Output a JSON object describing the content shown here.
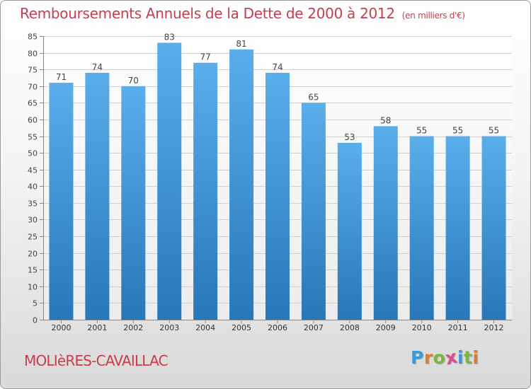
{
  "chart_data": {
    "type": "bar",
    "title": "Remboursements Annuels de la Dette de 2000 à 2012",
    "unit_label": "(en milliers d'€)",
    "categories": [
      "2000",
      "2001",
      "2002",
      "2003",
      "2004",
      "2005",
      "2006",
      "2007",
      "2008",
      "2009",
      "2010",
      "2011",
      "2012"
    ],
    "values": [
      71,
      74,
      70,
      83,
      77,
      81,
      74,
      65,
      53,
      58,
      55,
      55,
      55
    ],
    "ylim": [
      0,
      85
    ],
    "yticks": [
      0,
      5,
      10,
      15,
      20,
      25,
      30,
      35,
      40,
      45,
      50,
      55,
      60,
      65,
      70,
      75,
      80,
      85
    ],
    "grid": true,
    "bar_color_top": "#5aaeea",
    "bar_color_bottom": "#2877b8",
    "text_color": "#c63e4e"
  },
  "footer": {
    "city": "MOLIèRES-CAVAILLAC",
    "logo_letters": [
      "P",
      "r",
      "o",
      "x",
      "i",
      "t",
      "i"
    ],
    "logo_colors": [
      "#3d9ad6",
      "#e07b2a",
      "#7bb839",
      "#e04a8c",
      "#3d9ad6",
      "#7bb839",
      "#e07b2a"
    ]
  }
}
